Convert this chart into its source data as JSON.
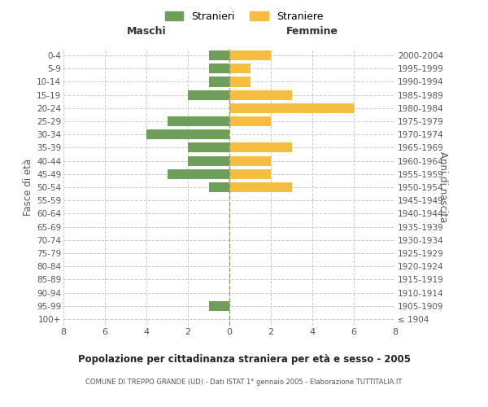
{
  "age_groups": [
    "100+",
    "95-99",
    "90-94",
    "85-89",
    "80-84",
    "75-79",
    "70-74",
    "65-69",
    "60-64",
    "55-59",
    "50-54",
    "45-49",
    "40-44",
    "35-39",
    "30-34",
    "25-29",
    "20-24",
    "15-19",
    "10-14",
    "5-9",
    "0-4"
  ],
  "birth_years": [
    "≤ 1904",
    "1905-1909",
    "1910-1914",
    "1915-1919",
    "1920-1924",
    "1925-1929",
    "1930-1934",
    "1935-1939",
    "1940-1944",
    "1945-1949",
    "1950-1954",
    "1955-1959",
    "1960-1964",
    "1965-1969",
    "1970-1974",
    "1975-1979",
    "1980-1984",
    "1985-1989",
    "1990-1994",
    "1995-1999",
    "2000-2004"
  ],
  "males": [
    0,
    1,
    0,
    0,
    0,
    0,
    0,
    0,
    0,
    0,
    1,
    3,
    2,
    2,
    4,
    3,
    0,
    2,
    1,
    1,
    1
  ],
  "females": [
    0,
    0,
    0,
    0,
    0,
    0,
    0,
    0,
    0,
    0,
    3,
    2,
    2,
    3,
    0,
    2,
    6,
    3,
    1,
    1,
    2
  ],
  "male_color": "#6d9f5b",
  "female_color": "#f5be41",
  "title": "Popolazione per cittadinanza straniera per età e sesso - 2005",
  "subtitle": "COMUNE DI TREPPO GRANDE (UD) - Dati ISTAT 1° gennaio 2005 - Elaborazione TUTTITALIA.IT",
  "xlabel_left": "Maschi",
  "xlabel_right": "Femmine",
  "ylabel_left": "Fasce di età",
  "ylabel_right": "Anni di nascita",
  "legend_male": "Stranieri",
  "legend_female": "Straniere",
  "xlim": 8,
  "background_color": "#ffffff",
  "grid_color": "#cccccc",
  "bar_height": 0.75
}
